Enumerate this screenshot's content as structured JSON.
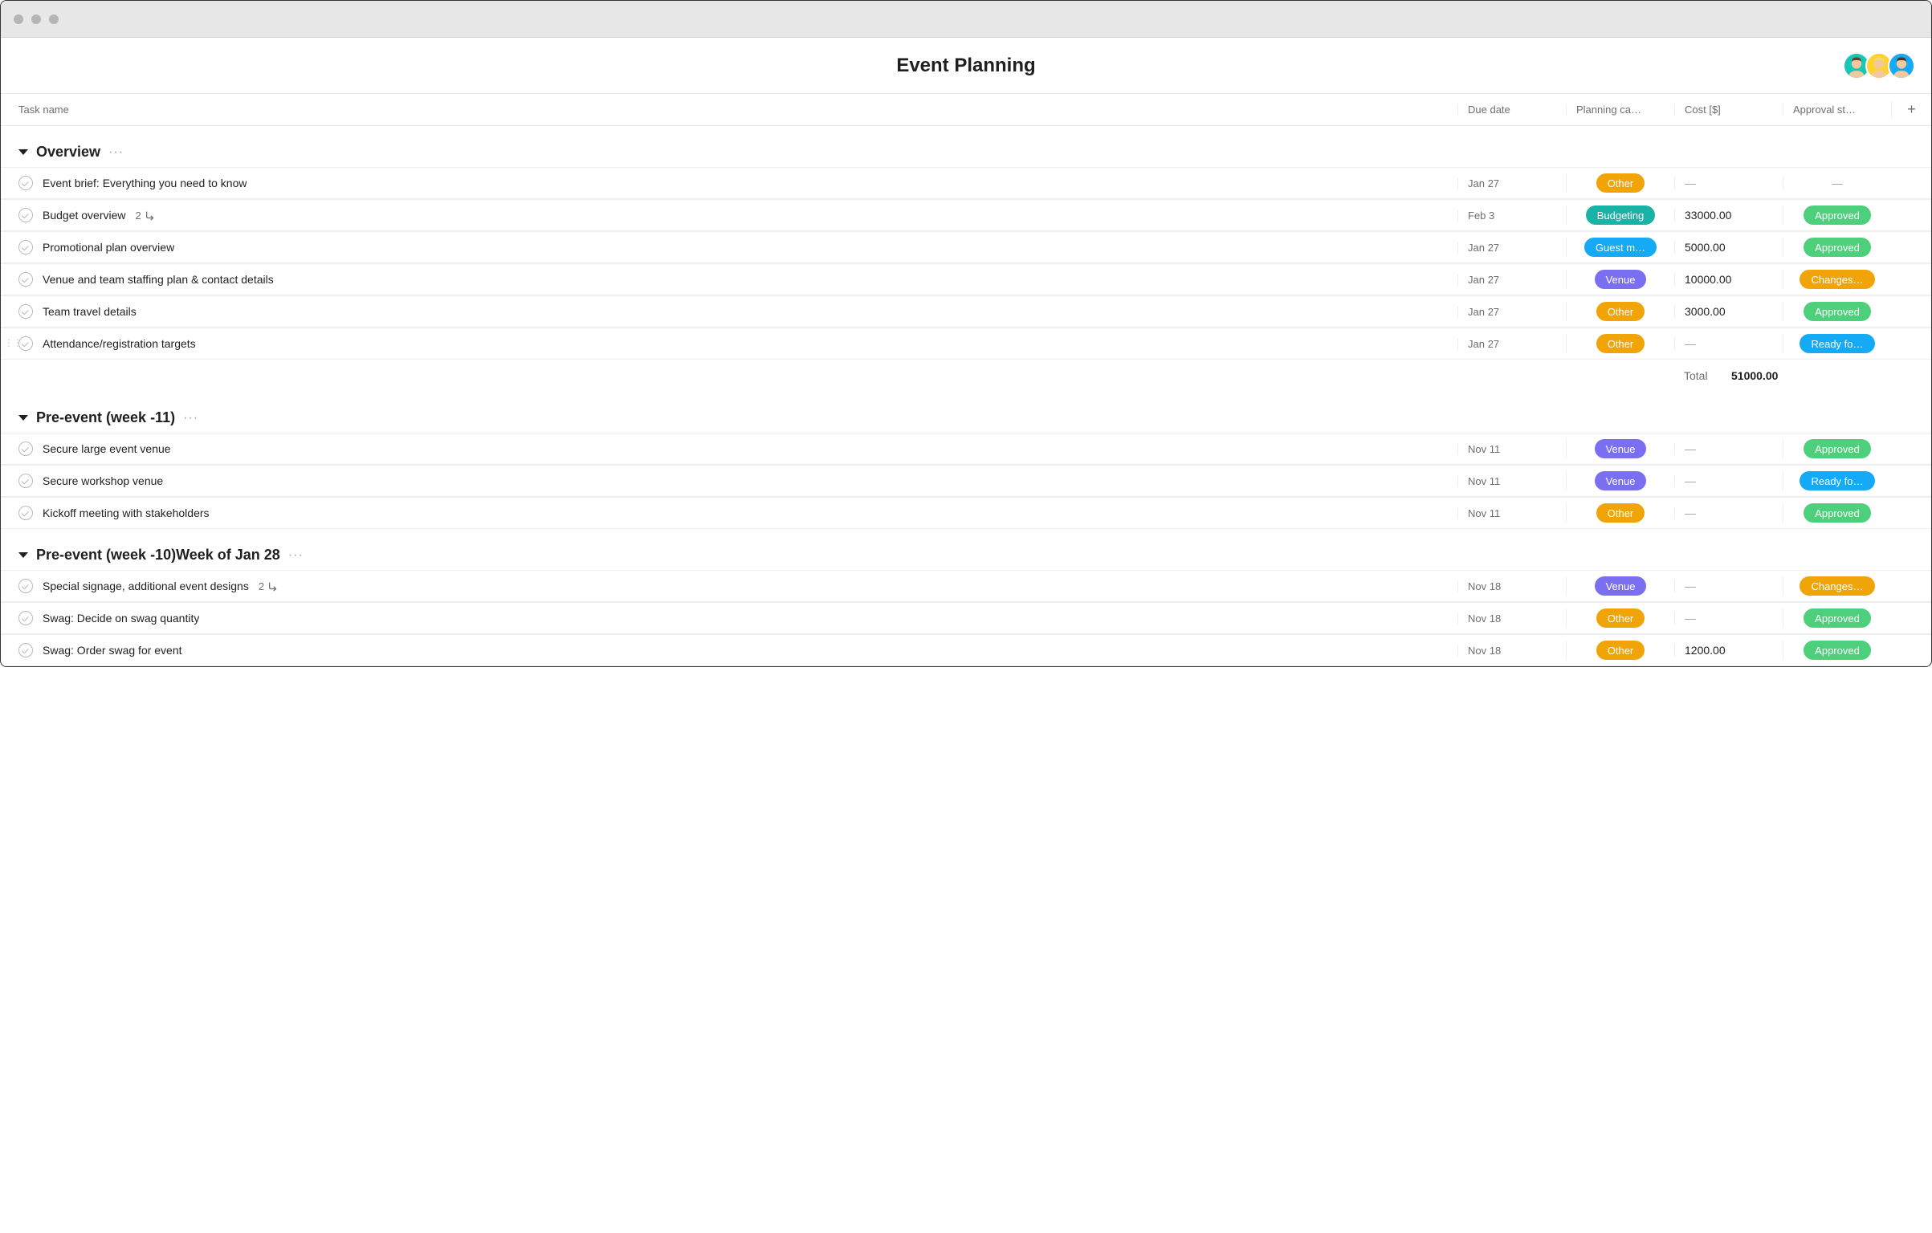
{
  "page": {
    "title": "Event Planning"
  },
  "avatars": [
    {
      "bg": "#17c7b7",
      "hair": "#6b3f2a",
      "skin": "#f2c99e"
    },
    {
      "bg": "#ffd233",
      "hair": "#f6d96b",
      "skin": "#f2c99e"
    },
    {
      "bg": "#14aaf5",
      "hair": "#4a3527",
      "skin": "#f2c99e"
    }
  ],
  "columns": {
    "task": "Task name",
    "due": "Due date",
    "category": "Planning ca…",
    "cost": "Cost [$]",
    "approval": "Approval st…",
    "plus": "+"
  },
  "category_colors": {
    "Other": "#f1a408",
    "Budgeting": "#19b3a6",
    "Guest m…": "#14aaf5",
    "Venue": "#7a6ff0"
  },
  "approval_colors": {
    "Approved": "#4ecf7b",
    "Changes…": "#f1a408",
    "Ready fo…": "#14aaf5"
  },
  "totals": {
    "label": "Total",
    "value": "51000.00"
  },
  "sections": [
    {
      "title": "Overview",
      "rows": [
        {
          "name": "Event brief: Everything you need to know",
          "due": "Jan 27",
          "category": "Other",
          "cost": "—",
          "approval": "—"
        },
        {
          "name": "Budget overview",
          "subtasks": "2",
          "due": "Feb 3",
          "category": "Budgeting",
          "cost": "33000.00",
          "approval": "Approved"
        },
        {
          "name": "Promotional plan overview",
          "due": "Jan 27",
          "category": "Guest m…",
          "cost": "5000.00",
          "approval": "Approved"
        },
        {
          "name": "Venue and team staffing plan & contact details",
          "due": "Jan 27",
          "category": "Venue",
          "cost": "10000.00",
          "approval": "Changes…"
        },
        {
          "name": "Team travel details",
          "due": "Jan 27",
          "category": "Other",
          "cost": "3000.00",
          "approval": "Approved"
        },
        {
          "name": "Attendance/registration targets",
          "due": "Jan 27",
          "category": "Other",
          "cost": "—",
          "approval": "Ready fo…",
          "drag_handle": true
        }
      ],
      "show_total": true
    },
    {
      "title": "Pre-event (week -11)",
      "rows": [
        {
          "name": "Secure large event venue",
          "due": "Nov 11",
          "category": "Venue",
          "cost": "—",
          "approval": "Approved"
        },
        {
          "name": "Secure workshop venue",
          "due": "Nov 11",
          "category": "Venue",
          "cost": "—",
          "approval": "Ready fo…"
        },
        {
          "name": "Kickoff meeting with stakeholders",
          "due": "Nov 11",
          "category": "Other",
          "cost": "—",
          "approval": "Approved"
        }
      ]
    },
    {
      "title": "Pre-event (week -10)Week of Jan 28",
      "rows": [
        {
          "name": "Special signage, additional event designs",
          "subtasks": "2",
          "due": "Nov 18",
          "category": "Venue",
          "cost": "—",
          "approval": "Changes…"
        },
        {
          "name": "Swag: Decide on swag quantity",
          "due": "Nov 18",
          "category": "Other",
          "cost": "—",
          "approval": "Approved"
        },
        {
          "name": "Swag: Order swag for event",
          "due": "Nov 18",
          "category": "Other",
          "cost": "1200.00",
          "approval": "Approved"
        }
      ]
    }
  ]
}
